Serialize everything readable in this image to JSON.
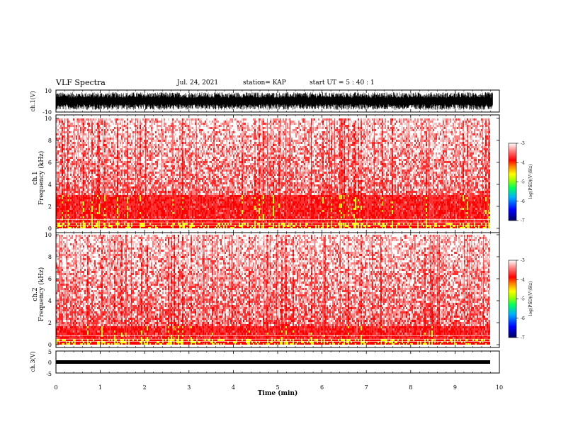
{
  "header": {
    "title": "VLF Spectra",
    "date": "Jul. 24, 2021",
    "station": "station= KAP",
    "start": "start UT =  5 : 40 : 1"
  },
  "chart_data": [
    {
      "type": "line",
      "ylabel": "ch.1(V)",
      "ylim": [
        -10,
        10
      ],
      "ytick_labels": [
        "10",
        "-10"
      ],
      "xlim": [
        0,
        10
      ],
      "data_end_x": 9.85,
      "series": [
        {
          "description_values": "dense oscillation roughly between -8 and 8 V"
        }
      ]
    },
    {
      "type": "heatmap",
      "ylabel": "ch.1\nFrequency (kHz)",
      "ylim": [
        0,
        10
      ],
      "ytick_labels": [
        "0",
        "2",
        "4",
        "6",
        "8",
        "10"
      ],
      "xlim": [
        0,
        10
      ],
      "data_end_x": 9.85,
      "colorbar": {
        "label": "log(PSD)(V²/Hz)",
        "range": [
          -7,
          -3
        ],
        "tick_labels": [
          "-3",
          "-4",
          "-5",
          "-6",
          "-7"
        ]
      }
    },
    {
      "type": "heatmap",
      "ylabel": "ch.2\nFrequency (kHz)",
      "ylim": [
        0,
        10
      ],
      "ytick_labels": [
        "0",
        "2",
        "4",
        "6",
        "8",
        "10"
      ],
      "xlim": [
        0,
        10
      ],
      "data_end_x": 9.85,
      "colorbar": {
        "label": "log(PSD)(V²/Hz)",
        "range": [
          -7,
          -3
        ],
        "tick_labels": [
          "-3",
          "-4",
          "-5",
          "-6",
          "-7"
        ]
      }
    },
    {
      "type": "line",
      "ylabel": "ch.3(V)",
      "ylim": [
        -5,
        5
      ],
      "ytick_labels": [
        "5",
        "0",
        "-5"
      ],
      "xlim": [
        0,
        10
      ],
      "data_end_x": 9.85,
      "series": [
        {
          "description_values": "near-constant around -2 V"
        }
      ]
    }
  ],
  "xaxis": {
    "label": "Time (min)",
    "tick_labels": [
      "0",
      "1",
      "2",
      "3",
      "4",
      "5",
      "6",
      "7",
      "8",
      "9",
      "10"
    ]
  },
  "colors": {
    "colormap": [
      "#000080",
      "#0000ff",
      "#00c0ff",
      "#00ff80",
      "#80ff00",
      "#ffff00",
      "#ff8000",
      "#ff0000",
      "#ff4040",
      "#ffffff"
    ]
  }
}
